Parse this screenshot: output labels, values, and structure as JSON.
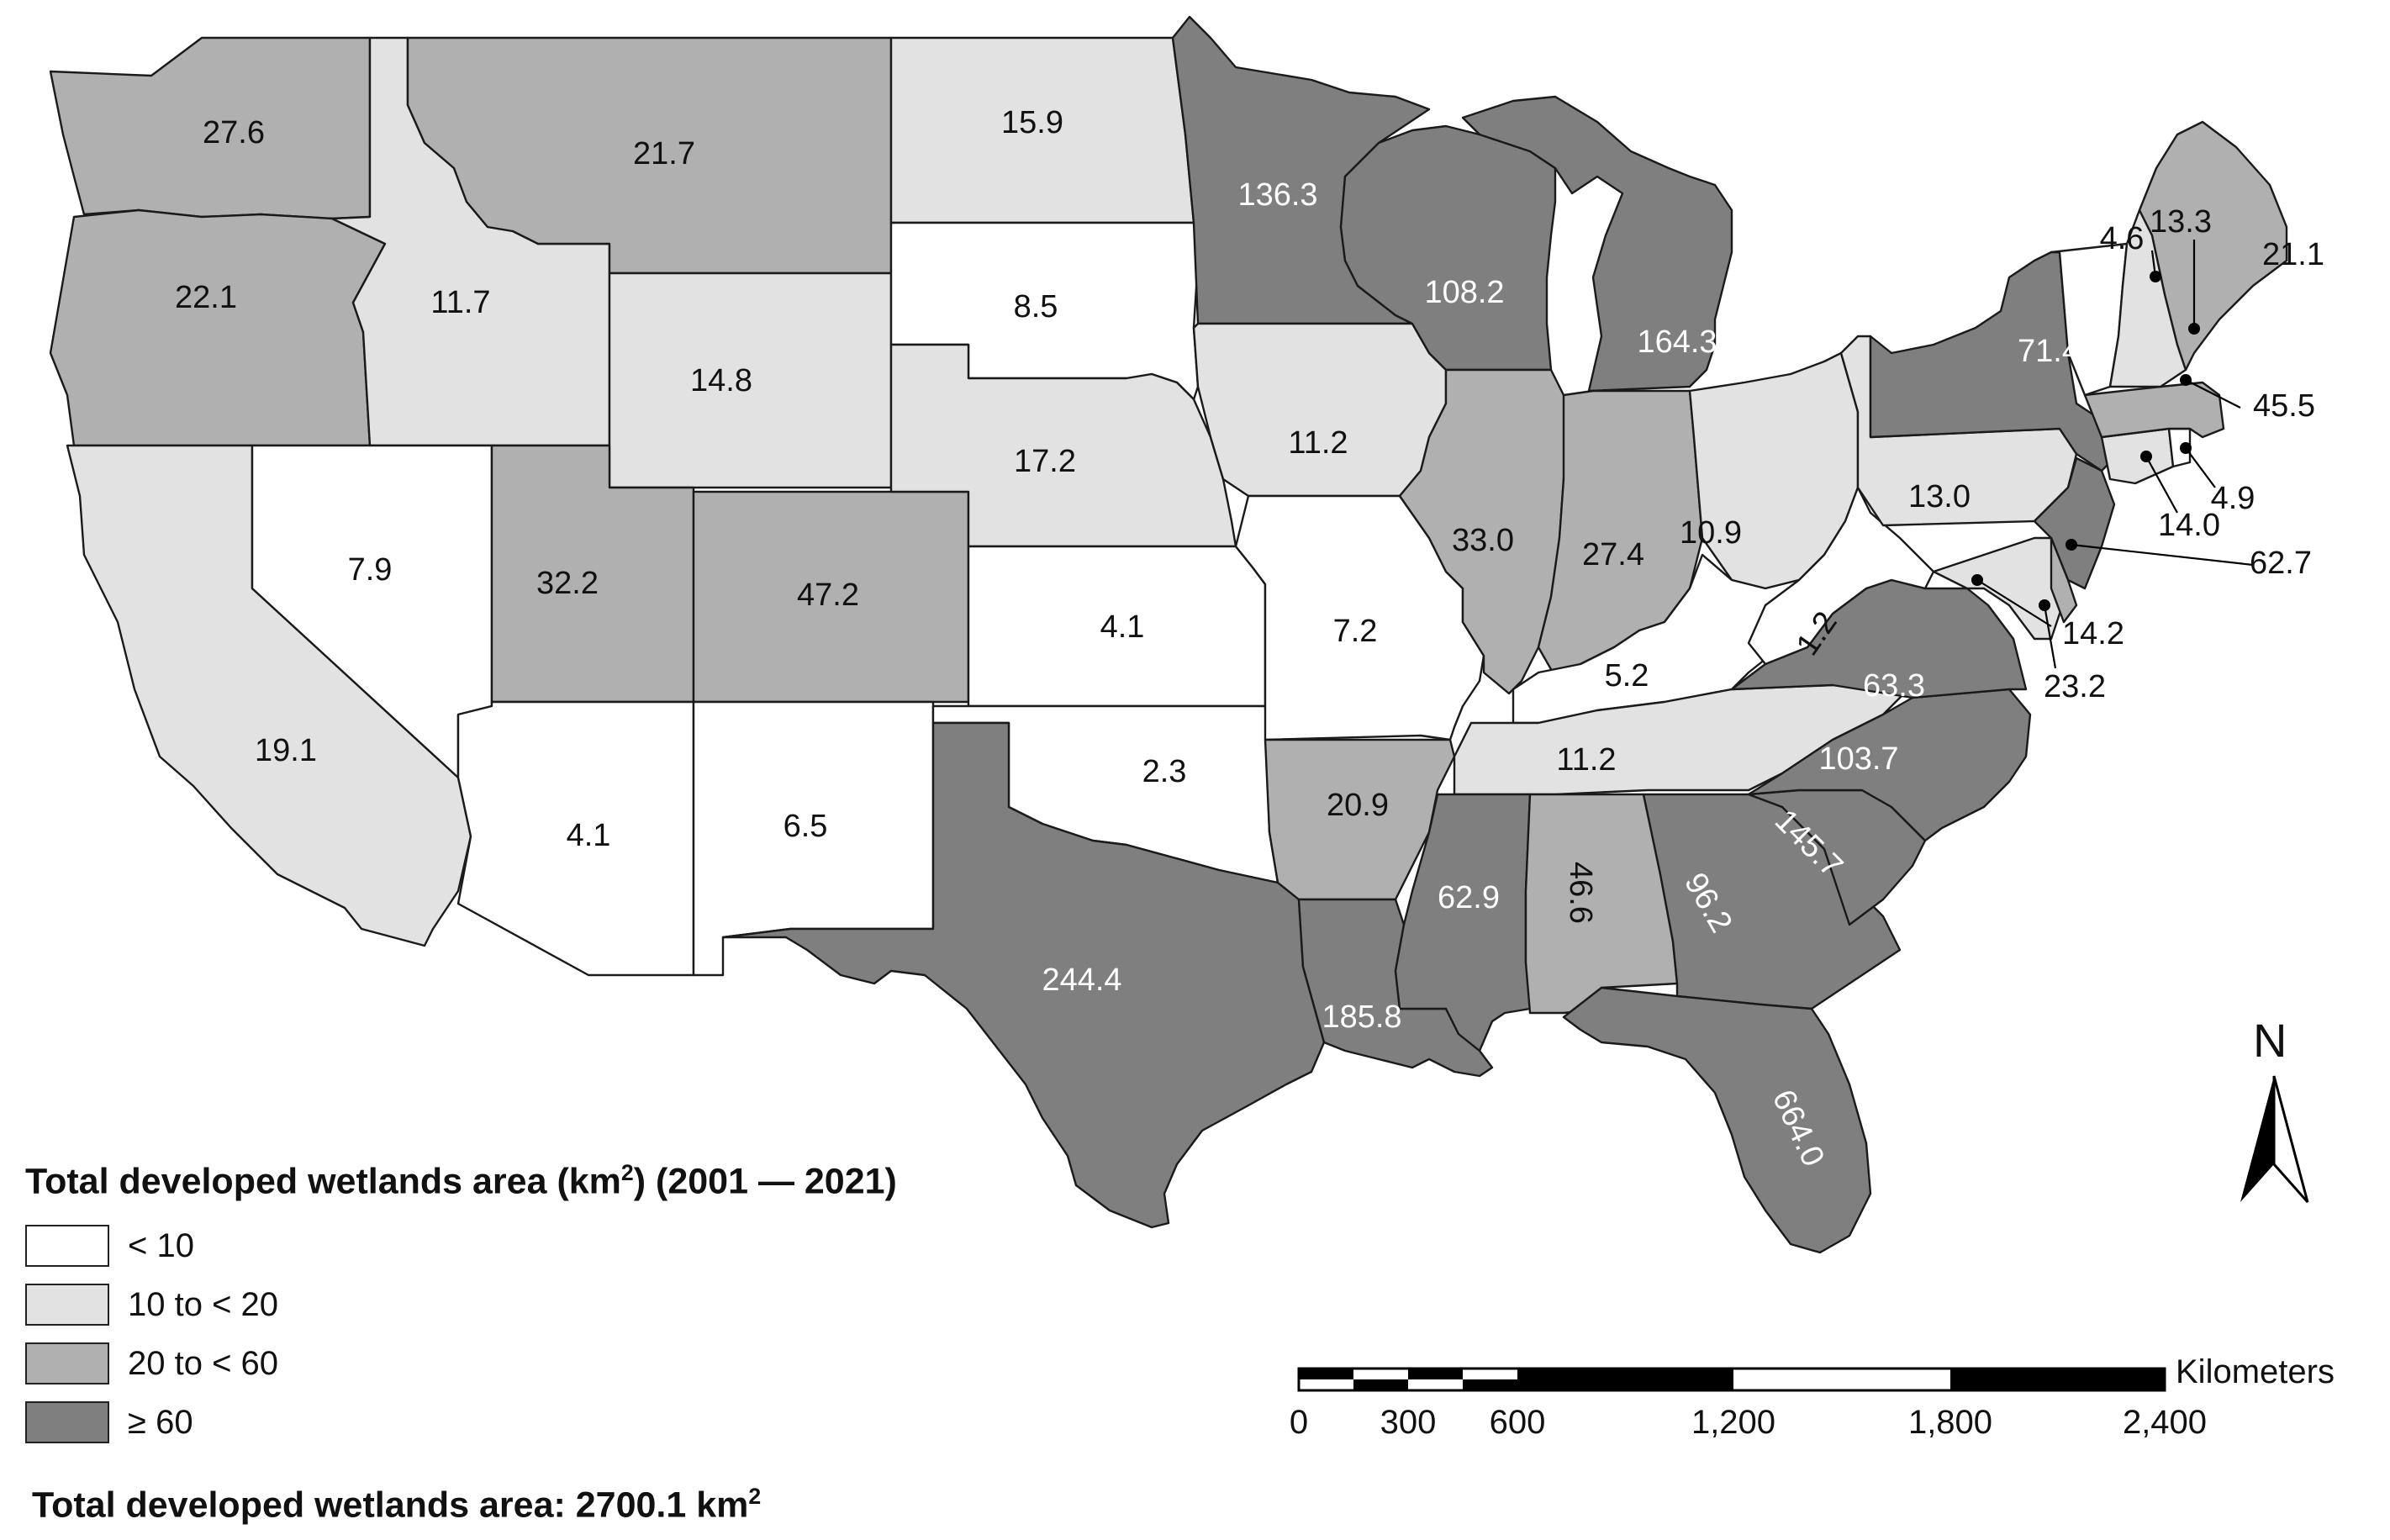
{
  "legend": {
    "title_main": "Total developed wetlands area (km",
    "title_sup": "2",
    "title_rest": ") (2001 — 2021)",
    "classes": [
      {
        "label": "< 10",
        "color": "#ffffff"
      },
      {
        "label": "10 to < 20",
        "color": "#e2e2e2"
      },
      {
        "label": "20 to < 60",
        "color": "#b0b0b0"
      },
      {
        "label": "≥ 60",
        "color": "#7f7f7f"
      }
    ]
  },
  "total": {
    "text": "Total developed wetlands area: 2700.1 km",
    "sup": "2"
  },
  "north_arrow": {
    "label": "N"
  },
  "scale_bar": {
    "unit": "Kilometers",
    "ticks": [
      "0",
      "300",
      "600",
      "1,200",
      "1,800",
      "2,400"
    ]
  },
  "states": [
    {
      "state": "Washington",
      "value": "27.6",
      "class": 2
    },
    {
      "state": "Oregon",
      "value": "22.1",
      "class": 2
    },
    {
      "state": "California",
      "value": "19.1",
      "class": 1
    },
    {
      "state": "Idaho",
      "value": "11.7",
      "class": 1
    },
    {
      "state": "Nevada",
      "value": "7.9",
      "class": 0
    },
    {
      "state": "Montana",
      "value": "21.7",
      "class": 2
    },
    {
      "state": "Wyoming",
      "value": "14.8",
      "class": 1
    },
    {
      "state": "Utah",
      "value": "32.2",
      "class": 2
    },
    {
      "state": "Arizona",
      "value": "4.1",
      "class": 0
    },
    {
      "state": "Colorado",
      "value": "47.2",
      "class": 2
    },
    {
      "state": "New Mexico",
      "value": "6.5",
      "class": 0
    },
    {
      "state": "North Dakota",
      "value": "15.9",
      "class": 1
    },
    {
      "state": "South Dakota",
      "value": "8.5",
      "class": 0
    },
    {
      "state": "Nebraska",
      "value": "17.2",
      "class": 1
    },
    {
      "state": "Kansas",
      "value": "4.1",
      "class": 0
    },
    {
      "state": "Oklahoma",
      "value": "2.3",
      "class": 0
    },
    {
      "state": "Texas",
      "value": "244.4",
      "class": 3
    },
    {
      "state": "Minnesota",
      "value": "136.3",
      "class": 3
    },
    {
      "state": "Iowa",
      "value": "11.2",
      "class": 1
    },
    {
      "state": "Missouri",
      "value": "7.2",
      "class": 0
    },
    {
      "state": "Arkansas",
      "value": "20.9",
      "class": 2
    },
    {
      "state": "Louisiana",
      "value": "185.8",
      "class": 3
    },
    {
      "state": "Wisconsin",
      "value": "108.2",
      "class": 3
    },
    {
      "state": "Illinois",
      "value": "33.0",
      "class": 2
    },
    {
      "state": "Michigan",
      "value": "164.3",
      "class": 3
    },
    {
      "state": "Indiana",
      "value": "27.4",
      "class": 2
    },
    {
      "state": "Ohio",
      "value": "10.9",
      "class": 1
    },
    {
      "state": "Kentucky",
      "value": "5.2",
      "class": 0
    },
    {
      "state": "Tennessee",
      "value": "11.2",
      "class": 1
    },
    {
      "state": "Mississippi",
      "value": "62.9",
      "class": 3
    },
    {
      "state": "Alabama",
      "value": "46.6",
      "class": 2
    },
    {
      "state": "Georgia",
      "value": "96.2",
      "class": 3
    },
    {
      "state": "Florida",
      "value": "664.0",
      "class": 3
    },
    {
      "state": "South Carolina",
      "value": "145.7",
      "class": 3
    },
    {
      "state": "North Carolina",
      "value": "103.7",
      "class": 3
    },
    {
      "state": "Virginia",
      "value": "63.3",
      "class": 3
    },
    {
      "state": "West Virginia",
      "value": "1.2",
      "class": 0
    },
    {
      "state": "Pennsylvania",
      "value": "13.0",
      "class": 1
    },
    {
      "state": "New York",
      "value": "71.4",
      "class": 3
    },
    {
      "state": "New Jersey",
      "value": "62.7",
      "class": 3
    },
    {
      "state": "Maryland",
      "value": "14.2",
      "class": 1
    },
    {
      "state": "Delaware",
      "value": "23.2",
      "class": 2
    },
    {
      "state": "Connecticut",
      "value": "14.0",
      "class": 1
    },
    {
      "state": "Rhode Island",
      "value": "4.9",
      "class": 0
    },
    {
      "state": "Massachusetts",
      "value": "45.5",
      "class": 2
    },
    {
      "state": "Vermont",
      "value": "4.6",
      "class": 0
    },
    {
      "state": "New Hampshire",
      "value": "13.3",
      "class": 1
    },
    {
      "state": "Maine",
      "value": "21.1",
      "class": 2
    }
  ]
}
